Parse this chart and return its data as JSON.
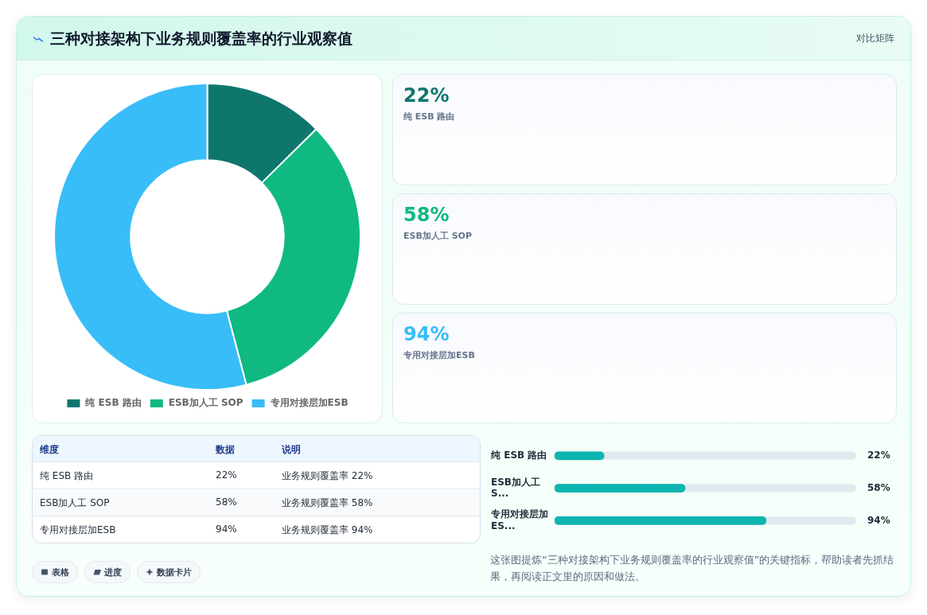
{
  "chart_data": [
    {
      "type": "donut",
      "title": "三种对接架构下业务规则覆盖率的行业观察值",
      "categories": [
        "纯 ESB 路由",
        "ESB加人工 SOP",
        "专用对接层加ESB"
      ],
      "values": [
        12.6,
        33.3,
        54.1
      ],
      "colors": [
        "#0f766e",
        "#10b981",
        "#38bdf8"
      ],
      "legend": "bottom"
    },
    {
      "type": "other",
      "colors": [
        "#0f766e",
        "#10b981",
        "#38bdf8"
      ],
      "annotations": [
        "对比矩阵",
        "22%",
        "纯 ESB 路由",
        "58%",
        "ESB加人工 SOP",
        "94%",
        "专用对接层加ESB"
      ]
    },
    {
      "type": "other",
      "annotations": [
        "维度",
        "数据",
        "说明",
        "纯 ESB 路由",
        "22%",
        "业务规则覆盖率 22%",
        "ESB加人工 SOP",
        "58%",
        "业务规则覆盖率 58%",
        "专用对接层加ESB",
        "94%",
        "业务规则覆盖率 94%",
        "表格",
        "进度",
        "数据卡片"
      ]
    },
    {
      "type": "bar",
      "orientation": "horizontal",
      "categories": [
        "纯 ESB 路由",
        "ESB加人工 S...",
        "专用对接层加ES..."
      ],
      "values": [
        22,
        58,
        94
      ],
      "color": "#0db5b0",
      "xlim": [
        0,
        134
      ],
      "value_labels": [
        "22%",
        "58%",
        "94%"
      ],
      "tick_labels": "y",
      "annotations": [
        "这张图提炼“三种对接架构下业务规则覆盖率的行业观察值”的关键指标，帮助读者先抓结果，再阅读正文里的原因和做法。"
      ]
    }
  ]
}
